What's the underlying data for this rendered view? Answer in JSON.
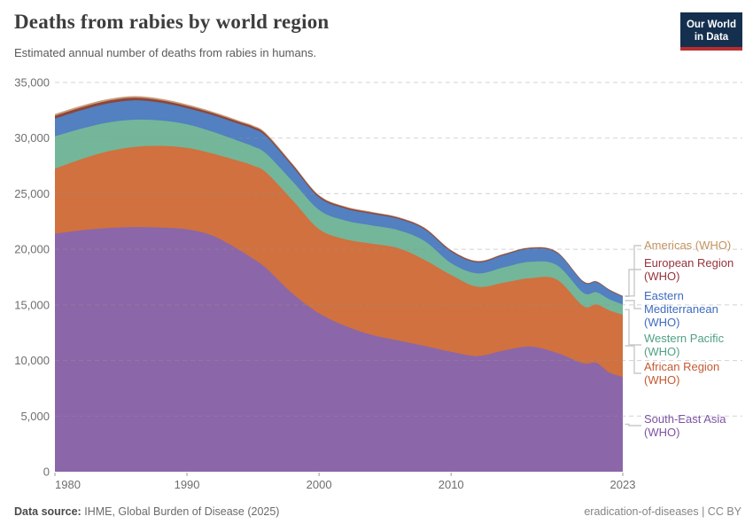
{
  "header": {
    "logo": {
      "line1": "Our World",
      "line2": "in Data"
    }
  },
  "footer": {
    "source_label": "Data source:",
    "source": "IHME, Global Burden of Disease (2025)",
    "note": "eradication-of-diseases | CC BY"
  },
  "chart_data": {
    "type": "area",
    "stacked": true,
    "title": "Deaths from rabies by world region",
    "subtitle": "Estimated annual number of deaths from rabies in humans.",
    "xlabel": "",
    "ylabel": "",
    "xlim": [
      1980,
      2023
    ],
    "ylim": [
      0,
      35000
    ],
    "xticks": [
      1980,
      1990,
      2000,
      2010,
      2023
    ],
    "yticks": [
      0,
      5000,
      10000,
      15000,
      20000,
      25000,
      30000,
      35000
    ],
    "grid": "dashed-horizontal",
    "legend_position": "right",
    "x": [
      1980,
      1982,
      1984,
      1986,
      1988,
      1990,
      1992,
      1994,
      1995,
      1996,
      1998,
      2000,
      2002,
      2004,
      2006,
      2008,
      2010,
      2012,
      2014,
      2016,
      2018,
      2020,
      2021,
      2022,
      2023
    ],
    "series": [
      {
        "name": "south_east_asia",
        "label": "South-East Asia (WHO)",
        "color": "#7d52a4",
        "fill": "#8b66a9",
        "values": [
          21400,
          21700,
          21900,
          22000,
          21950,
          21800,
          21200,
          19900,
          19150,
          18300,
          16000,
          14240,
          13100,
          12300,
          11800,
          11300,
          10780,
          10390,
          10900,
          11250,
          10680,
          9750,
          9780,
          8900,
          8530
        ]
      },
      {
        "name": "african_region",
        "label": "African Region (WHO)",
        "color": "#c35a32",
        "fill": "#d0713f",
        "values": [
          5840,
          6400,
          6900,
          7200,
          7350,
          7320,
          7390,
          8020,
          8370,
          8600,
          8400,
          7570,
          7800,
          8200,
          8300,
          7740,
          6910,
          6240,
          6100,
          6150,
          6600,
          5150,
          5260,
          5600,
          5580
        ]
      },
      {
        "name": "western_pacific",
        "label": "Western Pacific (WHO)",
        "color": "#50a085",
        "fill": "#74b699",
        "values": [
          2920,
          2750,
          2600,
          2450,
          2280,
          2120,
          1950,
          1780,
          1730,
          1700,
          1700,
          1730,
          1680,
          1640,
          1620,
          1700,
          1060,
          1200,
          1380,
          1470,
          1300,
          1200,
          1100,
          1000,
          930
        ]
      },
      {
        "name": "eastern_mediterranean",
        "label": "Eastern Mediterranean (WHO)",
        "color": "#3d6bbf",
        "fill": "#5280c1",
        "values": [
          1590,
          1650,
          1700,
          1740,
          1600,
          1450,
          1500,
          1550,
          1600,
          1550,
          1350,
          1130,
          1080,
          1050,
          1020,
          1050,
          1050,
          1000,
          1100,
          1180,
          1100,
          950,
          900,
          800,
          700
        ]
      },
      {
        "name": "european_region",
        "label": "European Region (WHO)",
        "color": "#963339",
        "fill": "#8e4538",
        "values": [
          250,
          245,
          240,
          230,
          220,
          200,
          190,
          180,
          175,
          170,
          150,
          130,
          120,
          110,
          100,
          95,
          90,
          85,
          80,
          80,
          75,
          65,
          60,
          55,
          50
        ]
      },
      {
        "name": "americas",
        "label": "Americas (WHO)",
        "color": "#c3925e",
        "fill": "#c89d7c",
        "values": [
          170,
          165,
          160,
          150,
          140,
          130,
          120,
          112,
          108,
          105,
          90,
          75,
          70,
          65,
          58,
          54,
          50,
          46,
          43,
          40,
          37,
          32,
          30,
          27,
          25
        ]
      }
    ]
  }
}
